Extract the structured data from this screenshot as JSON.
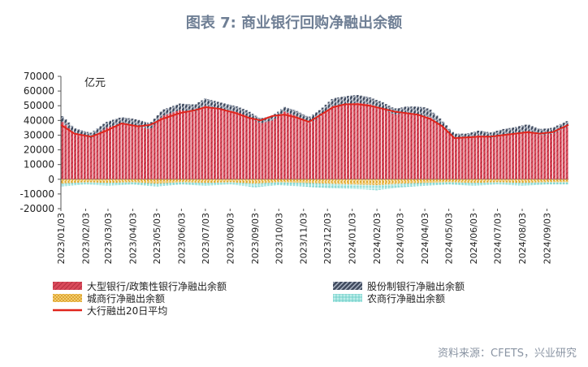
{
  "chart_data": {
    "type": "bar",
    "title": "图表 7: 商业银行回购净融出余额",
    "unit_label": "亿元",
    "source": "资料来源：CFETS，兴业研究",
    "ylim": [
      -20000,
      70000
    ],
    "yticks": [
      "70000",
      "60000",
      "50000",
      "40000",
      "30000",
      "20000",
      "10000",
      "0",
      "-10000",
      "-20000"
    ],
    "ytick_values": [
      70000,
      60000,
      50000,
      40000,
      30000,
      20000,
      10000,
      0,
      -10000,
      -20000
    ],
    "x_range": [
      "2023-01-03",
      "2024-09-30"
    ],
    "xticks": [
      "2023/01/03",
      "2023/02/03",
      "2023/03/03",
      "2023/04/03",
      "2023/05/03",
      "2023/06/03",
      "2023/07/03",
      "2023/08/03",
      "2023/09/03",
      "2023/10/03",
      "2023/11/03",
      "2023/12/03",
      "2024/01/03",
      "2024/02/03",
      "2024/03/03",
      "2024/04/03",
      "2024/05/03",
      "2024/06/03",
      "2024/07/03",
      "2024/08/03",
      "2024/09/03"
    ],
    "grid": false,
    "legend_position": "bottom",
    "legend": [
      "大型银行/政策性银行净融出余额",
      "股份制银行净融出余额",
      "城商行净融出余额",
      "农商行净融出余额",
      "大行融出20日平均"
    ],
    "series": [
      {
        "name": "大型银行/政策性银行净融出余额",
        "kind": "bar",
        "color": "#d94a5b",
        "points": [
          [
            "2023-01-03",
            40000
          ],
          [
            "2023-01-20",
            31000
          ],
          [
            "2023-02-10",
            28000
          ],
          [
            "2023-03-01",
            35000
          ],
          [
            "2023-03-20",
            38000
          ],
          [
            "2023-04-10",
            36000
          ],
          [
            "2023-04-25",
            34000
          ],
          [
            "2023-05-10",
            43000
          ],
          [
            "2023-06-01",
            47000
          ],
          [
            "2023-06-20",
            46000
          ],
          [
            "2023-07-03",
            50000
          ],
          [
            "2023-07-20",
            48000
          ],
          [
            "2023-08-10",
            46000
          ],
          [
            "2023-08-25",
            43000
          ],
          [
            "2023-09-10",
            38000
          ],
          [
            "2023-09-25",
            40000
          ],
          [
            "2023-10-10",
            46000
          ],
          [
            "2023-10-25",
            43000
          ],
          [
            "2023-11-10",
            38000
          ],
          [
            "2023-11-25",
            43000
          ],
          [
            "2023-12-10",
            50000
          ],
          [
            "2023-12-25",
            51000
          ],
          [
            "2024-01-10",
            52000
          ],
          [
            "2024-01-25",
            51000
          ],
          [
            "2024-02-10",
            48000
          ],
          [
            "2024-02-25",
            44000
          ],
          [
            "2024-03-10",
            45000
          ],
          [
            "2024-03-25",
            44000
          ],
          [
            "2024-04-10",
            42000
          ],
          [
            "2024-04-25",
            36000
          ],
          [
            "2024-05-10",
            28000
          ],
          [
            "2024-05-25",
            28000
          ],
          [
            "2024-06-10",
            30000
          ],
          [
            "2024-06-25",
            28000
          ],
          [
            "2024-07-10",
            30000
          ],
          [
            "2024-07-25",
            31000
          ],
          [
            "2024-08-10",
            33000
          ],
          [
            "2024-08-25",
            30000
          ],
          [
            "2024-09-10",
            31000
          ],
          [
            "2024-09-30",
            36000
          ]
        ]
      },
      {
        "name": "股份制银行净融出余额",
        "kind": "bar",
        "color": "#3f4a5e",
        "points": [
          [
            "2023-01-03",
            4000
          ],
          [
            "2023-02-03",
            3500
          ],
          [
            "2023-03-03",
            4000
          ],
          [
            "2023-04-03",
            4500
          ],
          [
            "2023-05-03",
            4000
          ],
          [
            "2023-06-03",
            4500
          ],
          [
            "2023-07-03",
            5000
          ],
          [
            "2023-08-03",
            4000
          ],
          [
            "2023-09-03",
            3500
          ],
          [
            "2023-10-03",
            3000
          ],
          [
            "2023-11-03",
            4000
          ],
          [
            "2023-12-03",
            5000
          ],
          [
            "2024-01-03",
            5500
          ],
          [
            "2024-02-03",
            4500
          ],
          [
            "2024-03-03",
            4000
          ],
          [
            "2024-04-03",
            6000
          ],
          [
            "2024-05-03",
            3000
          ],
          [
            "2024-06-03",
            3000
          ],
          [
            "2024-07-03",
            4000
          ],
          [
            "2024-08-03",
            4500
          ],
          [
            "2024-09-03",
            4000
          ]
        ]
      },
      {
        "name": "城商行净融出余额",
        "kind": "bar",
        "color": "#e5b13b",
        "points": [
          [
            "2023-01-03",
            -3000
          ],
          [
            "2023-02-03",
            -2000
          ],
          [
            "2023-03-03",
            -2500
          ],
          [
            "2023-04-03",
            -2000
          ],
          [
            "2023-05-03",
            -3000
          ],
          [
            "2023-06-03",
            -2000
          ],
          [
            "2023-07-03",
            -2500
          ],
          [
            "2023-08-03",
            -2000
          ],
          [
            "2023-09-03",
            -3000
          ],
          [
            "2023-10-03",
            -2000
          ],
          [
            "2023-11-03",
            -2500
          ],
          [
            "2023-12-03",
            -3000
          ],
          [
            "2024-01-03",
            -3500
          ],
          [
            "2024-02-03",
            -4000
          ],
          [
            "2024-03-03",
            -3000
          ],
          [
            "2024-04-03",
            -2500
          ],
          [
            "2024-05-03",
            -2000
          ],
          [
            "2024-06-03",
            -2500
          ],
          [
            "2024-07-03",
            -2000
          ],
          [
            "2024-08-03",
            -2500
          ],
          [
            "2024-09-03",
            -2000
          ]
        ]
      },
      {
        "name": "农商行净融出余额",
        "kind": "bar",
        "color": "#7fd6d3",
        "points": [
          [
            "2023-01-03",
            -2000
          ],
          [
            "2023-02-03",
            -1500
          ],
          [
            "2023-03-03",
            -2000
          ],
          [
            "2023-04-03",
            -1500
          ],
          [
            "2023-05-03",
            -2000
          ],
          [
            "2023-06-03",
            -1500
          ],
          [
            "2023-07-03",
            -2000
          ],
          [
            "2023-08-03",
            -1500
          ],
          [
            "2023-09-03",
            -2500
          ],
          [
            "2023-10-03",
            -2000
          ],
          [
            "2023-11-03",
            -2500
          ],
          [
            "2023-12-03",
            -3000
          ],
          [
            "2024-01-03",
            -3000
          ],
          [
            "2024-02-03",
            -3500
          ],
          [
            "2024-03-03",
            -2500
          ],
          [
            "2024-04-03",
            -2000
          ],
          [
            "2024-05-03",
            -1500
          ],
          [
            "2024-06-03",
            -2000
          ],
          [
            "2024-07-03",
            -1500
          ],
          [
            "2024-08-03",
            -2000
          ],
          [
            "2024-09-03",
            -1500
          ]
        ]
      },
      {
        "name": "大行融出20日平均",
        "kind": "line",
        "color": "#e0251c",
        "points": [
          [
            "2023-01-03",
            37000
          ],
          [
            "2023-01-20",
            31000
          ],
          [
            "2023-02-10",
            29000
          ],
          [
            "2023-03-01",
            33000
          ],
          [
            "2023-03-20",
            38000
          ],
          [
            "2023-04-10",
            36000
          ],
          [
            "2023-04-25",
            37000
          ],
          [
            "2023-05-10",
            41000
          ],
          [
            "2023-06-01",
            45000
          ],
          [
            "2023-06-20",
            47000
          ],
          [
            "2023-07-03",
            49000
          ],
          [
            "2023-07-20",
            48000
          ],
          [
            "2023-08-10",
            45000
          ],
          [
            "2023-08-25",
            42000
          ],
          [
            "2023-09-10",
            40000
          ],
          [
            "2023-09-25",
            43000
          ],
          [
            "2023-10-10",
            44000
          ],
          [
            "2023-10-25",
            42000
          ],
          [
            "2023-11-10",
            39000
          ],
          [
            "2023-11-25",
            44000
          ],
          [
            "2023-12-10",
            49000
          ],
          [
            "2023-12-25",
            51000
          ],
          [
            "2024-01-10",
            51000
          ],
          [
            "2024-01-25",
            50000
          ],
          [
            "2024-02-10",
            48000
          ],
          [
            "2024-02-25",
            46000
          ],
          [
            "2024-03-10",
            45000
          ],
          [
            "2024-03-25",
            44000
          ],
          [
            "2024-04-10",
            41000
          ],
          [
            "2024-04-25",
            36000
          ],
          [
            "2024-05-10",
            28000
          ],
          [
            "2024-05-25",
            28500
          ],
          [
            "2024-06-10",
            29000
          ],
          [
            "2024-06-25",
            29000
          ],
          [
            "2024-07-10",
            30000
          ],
          [
            "2024-07-25",
            31000
          ],
          [
            "2024-08-10",
            32000
          ],
          [
            "2024-08-25",
            31000
          ],
          [
            "2024-09-10",
            32000
          ],
          [
            "2024-09-30",
            37000
          ]
        ]
      }
    ]
  }
}
